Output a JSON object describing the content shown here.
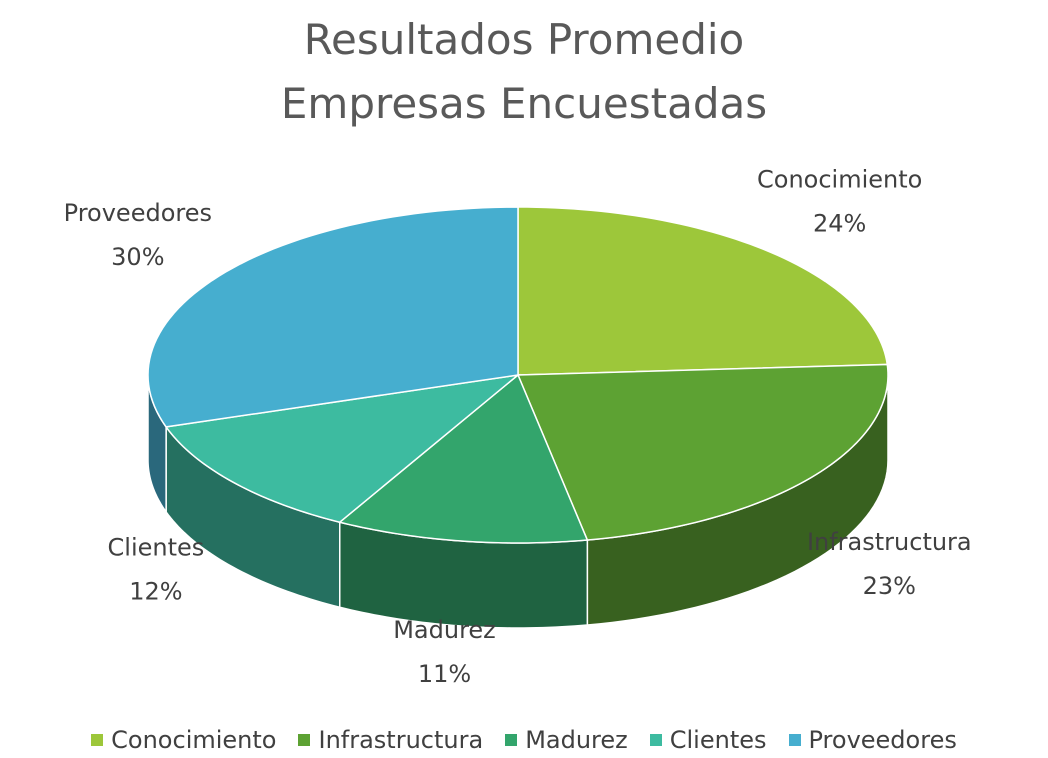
{
  "chart_data": {
    "type": "pie",
    "title": "Resultados Promedio Empresas Encuestadas",
    "categories": [
      "Conocimiento",
      "Infrastructura",
      "Madurez",
      "Clientes",
      "Proveedores"
    ],
    "values": [
      24,
      23,
      11,
      12,
      30
    ],
    "value_labels": [
      "24%",
      "23%",
      "11%",
      "12%",
      "30%"
    ],
    "colors": [
      "#9dc73a",
      "#5da233",
      "#33a56c",
      "#3dbba0",
      "#46aecf"
    ],
    "legend": "bottom"
  }
}
